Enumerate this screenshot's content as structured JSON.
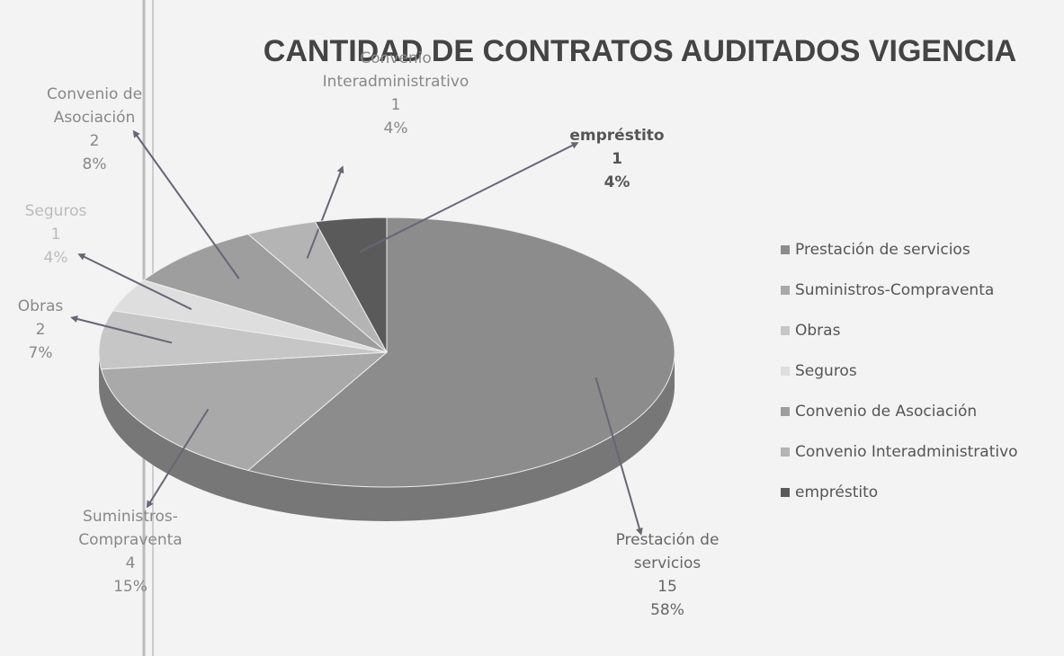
{
  "chart_data": {
    "type": "pie",
    "title": "CANTIDAD DE CONTRATOS AUDITADOS VIGENCIA",
    "categories": [
      "Prestación de servicios",
      "Suministros-Compraventa",
      "Obras",
      "Seguros",
      "Convenio de Asociación",
      "Convenio Interadministrativo",
      "empréstito"
    ],
    "counts": [
      15,
      4,
      2,
      1,
      2,
      1,
      1
    ],
    "values": [
      58,
      15,
      7,
      4,
      8,
      4,
      4
    ],
    "value_labels": [
      "58%",
      "15%",
      "7%",
      "4%",
      "8%",
      "4%",
      "4%"
    ],
    "colors": [
      "#8c8c8c",
      "#a9a9a9",
      "#c6c6c6",
      "#dedede",
      "#9e9e9e",
      "#b4b4b4",
      "#5a5a5a"
    ],
    "legend": "right"
  }
}
